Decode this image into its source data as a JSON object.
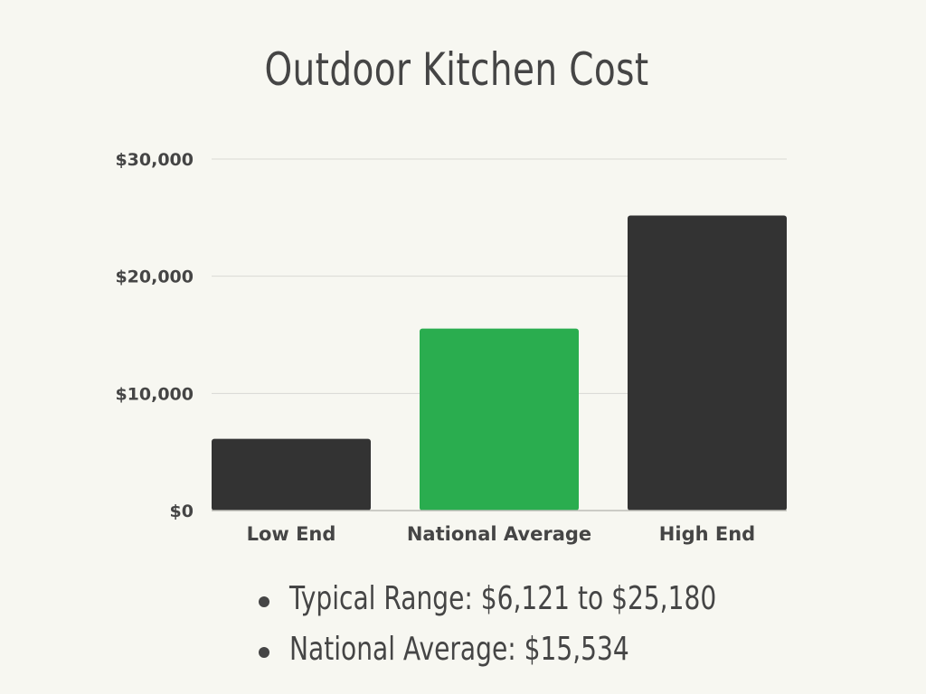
{
  "chart_data": {
    "type": "bar",
    "title": "Outdoor Kitchen Cost",
    "categories": [
      "Low End",
      "National Average",
      "High End"
    ],
    "values": [
      6121,
      15534,
      25180
    ],
    "bar_colors": [
      "#333333",
      "#2aad4f",
      "#333333"
    ],
    "ylim": [
      0,
      30000
    ],
    "yticks": [
      0,
      10000,
      20000,
      30000
    ],
    "ytick_labels": [
      "$0",
      "$10,000",
      "$20,000",
      "$30,000"
    ],
    "grid": true,
    "xlabel": "",
    "ylabel": ""
  },
  "notes": [
    "Typical Range: $6,121 to $25,180",
    "National Average: $15,534"
  ],
  "colors": {
    "background": "#f7f7f1",
    "text": "#454545",
    "accent": "#2aad4f",
    "bar_dark": "#333333",
    "grid": "#d9d9d4"
  }
}
